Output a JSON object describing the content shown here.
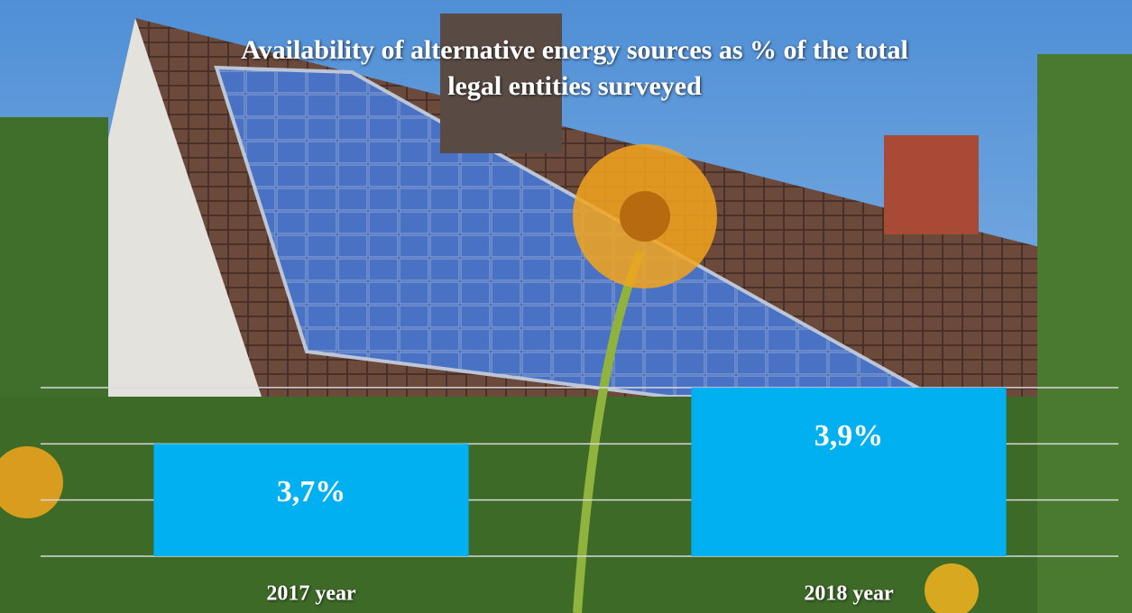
{
  "chart_data": {
    "type": "bar",
    "title": "Availability of alternative energy sources as % of the total legal entities surveyed",
    "categories": [
      "2017 year",
      "2018 year"
    ],
    "values": [
      3.7,
      3.9
    ],
    "value_labels": [
      "3,7%",
      "3,9%"
    ],
    "color": "#00b0f0",
    "ylim": [
      3.3,
      3.9
    ],
    "yticks": [
      3.3,
      3.5,
      3.7,
      3.9
    ],
    "grid": true
  }
}
